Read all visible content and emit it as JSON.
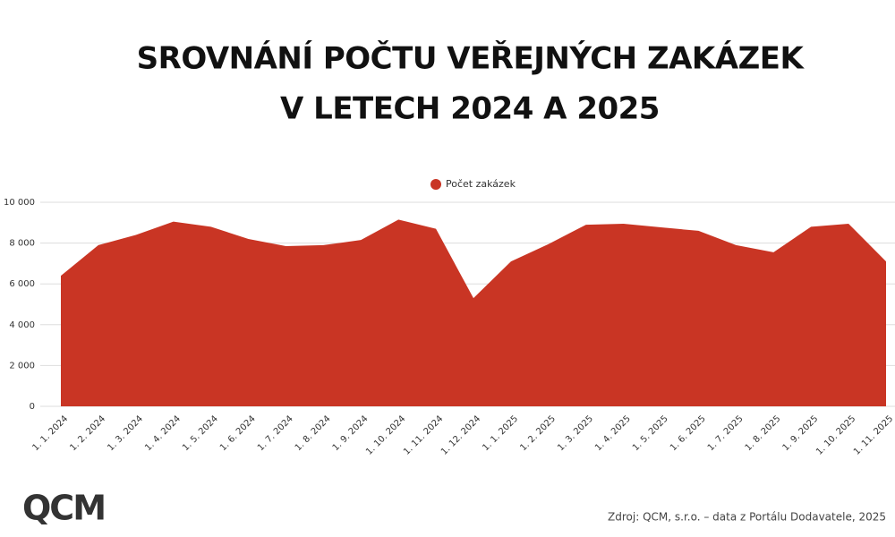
{
  "chart_data": {
    "type": "area",
    "title": [
      "SROVNÁNÍ POČTU VEŘEJNÝCH ZAKÁZEK",
      "V LETECH 2024 A 2025"
    ],
    "categories": [
      "1. 1. 2024",
      "1. 2. 2024",
      "1. 3. 2024",
      "1. 4. 2024",
      "1. 5. 2024",
      "1. 6. 2024",
      "1. 7. 2024",
      "1. 8. 2024",
      "1. 9. 2024",
      "1. 10. 2024",
      "1. 11. 2024",
      "1. 12. 2024",
      "1. 1. 2025",
      "1. 2. 2025",
      "1. 3. 2025",
      "1. 4. 2025",
      "1. 5. 2025",
      "1. 6. 2025",
      "1. 7. 2025",
      "1. 8. 2025",
      "1. 9. 2025",
      "1. 10. 2025",
      "1. 11. 2025"
    ],
    "series": [
      {
        "name": "Počet zakázek",
        "color": "#c93524",
        "values": [
          6400,
          7900,
          8400,
          9050,
          8800,
          8200,
          7850,
          7900,
          8150,
          9150,
          8700,
          5300,
          7100,
          7950,
          8900,
          8950,
          8770,
          8600,
          7900,
          7550,
          8800,
          8950,
          7100
        ]
      }
    ],
    "ylim": [
      0,
      10000
    ],
    "yticks": [
      0,
      {
        "value": 2000,
        "label": "2 000"
      },
      {
        "value": 4000,
        "label": "4 000"
      },
      {
        "value": 6000,
        "label": "6 000"
      },
      {
        "value": 8000,
        "label": "8 000"
      },
      {
        "value": 10000,
        "label": "10 000"
      }
    ],
    "grid": true,
    "legend": "top",
    "source": "Zdroj: QCM, s.r.o. – data z Portálu Dodavatele, 2025",
    "logo": "QCM"
  }
}
